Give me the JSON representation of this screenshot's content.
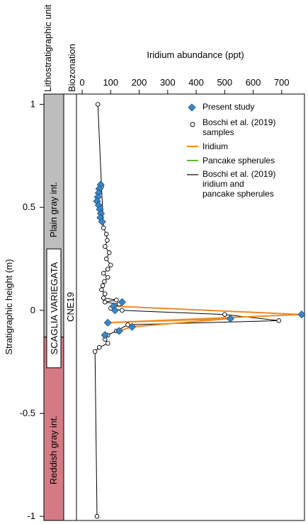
{
  "chart_data": {
    "type": "scatter",
    "title": "",
    "xlabel": "Iridium abundance (ppt)",
    "ylabel": "Stratigraphic height (m)",
    "xlim": [
      -20,
      780
    ],
    "ylim": [
      -1.02,
      1.05
    ],
    "x_ticks": [
      0,
      100,
      200,
      300,
      400,
      500,
      600,
      700
    ],
    "x_tick_labels": [
      "0",
      "100",
      "200",
      "300",
      "400",
      "500",
      "600",
      "700"
    ],
    "y_ticks": [
      1,
      0.5,
      0,
      -0.5,
      -1
    ],
    "y_tick_labels": [
      "1",
      "0.5",
      "0",
      "-0.5",
      "-1"
    ],
    "columns": {
      "litho_header": "Lithostratigraphic unit",
      "bio_header": "Biozonation",
      "formation": "SCAGLIA VARIEGATA",
      "upper_unit": "Plain gray int.",
      "lower_unit": "Reddish gray int.",
      "biozone": "CNE19",
      "boundary_height": -0.13,
      "upper_color": "#bdbdbd",
      "lower_color": "#d47a85"
    },
    "legend": {
      "placement": "top-right",
      "present_study": "Present study",
      "boschi_samples": "Boschi et al. (2019) samples",
      "iridium": "Iridium",
      "pancake": "Pancake spherules",
      "boschi_lines": "Boschi et al. (2019) iridium and pancake spherules"
    },
    "colors": {
      "present_study": "#3a87c8",
      "iridium_line": "#f08a24",
      "pancake_line": "#5cb531",
      "boschi_line": "#000000"
    },
    "series": [
      {
        "name": "Present study",
        "marker": "diamond",
        "points": [
          {
            "x": 65,
            "y": 0.61
          },
          {
            "x": 60,
            "y": 0.59
          },
          {
            "x": 58,
            "y": 0.57
          },
          {
            "x": 55,
            "y": 0.55
          },
          {
            "x": 52,
            "y": 0.53
          },
          {
            "x": 58,
            "y": 0.51
          },
          {
            "x": 62,
            "y": 0.49
          },
          {
            "x": 66,
            "y": 0.47
          },
          {
            "x": 64,
            "y": 0.45
          },
          {
            "x": 70,
            "y": 0.43
          },
          {
            "x": 140,
            "y": 0.04
          },
          {
            "x": 110,
            "y": 0.02
          },
          {
            "x": 115,
            "y": 0.0
          },
          {
            "x": 770,
            "y": -0.02
          },
          {
            "x": 520,
            "y": -0.04
          },
          {
            "x": 90,
            "y": -0.06
          },
          {
            "x": 175,
            "y": -0.08
          },
          {
            "x": 130,
            "y": -0.1
          },
          {
            "x": 80,
            "y": -0.12
          }
        ]
      },
      {
        "name": "Iridium",
        "marker": "line",
        "points": [
          {
            "x": 110,
            "y": 0.02
          },
          {
            "x": 770,
            "y": -0.02
          },
          {
            "x": 90,
            "y": -0.06
          },
          {
            "x": 520,
            "y": -0.04
          },
          {
            "x": 175,
            "y": -0.08
          },
          {
            "x": 130,
            "y": -0.1
          }
        ]
      },
      {
        "name": "Boschi et al. (2019) samples",
        "marker": "circle",
        "points": [
          {
            "x": 55,
            "y": 1.0
          },
          {
            "x": 68,
            "y": 0.6
          },
          {
            "x": 75,
            "y": 0.4
          },
          {
            "x": 85,
            "y": 0.37
          },
          {
            "x": 88,
            "y": 0.34
          },
          {
            "x": 80,
            "y": 0.31
          },
          {
            "x": 95,
            "y": 0.28
          },
          {
            "x": 85,
            "y": 0.25
          },
          {
            "x": 100,
            "y": 0.22
          },
          {
            "x": 90,
            "y": 0.2
          },
          {
            "x": 75,
            "y": 0.18
          },
          {
            "x": 90,
            "y": 0.16
          },
          {
            "x": 78,
            "y": 0.14
          },
          {
            "x": 72,
            "y": 0.12
          },
          {
            "x": 68,
            "y": 0.1
          },
          {
            "x": 80,
            "y": 0.08
          },
          {
            "x": 75,
            "y": 0.06
          },
          {
            "x": 120,
            "y": 0.05
          },
          {
            "x": 80,
            "y": 0.04
          },
          {
            "x": 130,
            "y": 0.03
          },
          {
            "x": 100,
            "y": 0.01
          },
          {
            "x": 140,
            "y": 0.0
          },
          {
            "x": 500,
            "y": -0.02
          },
          {
            "x": 690,
            "y": -0.05
          },
          {
            "x": 160,
            "y": -0.07
          },
          {
            "x": 120,
            "y": -0.1
          },
          {
            "x": 90,
            "y": -0.12
          },
          {
            "x": 80,
            "y": -0.14
          },
          {
            "x": 90,
            "y": -0.16
          },
          {
            "x": 60,
            "y": -0.18
          },
          {
            "x": 45,
            "y": -0.2
          },
          {
            "x": 52,
            "y": -1.0
          }
        ]
      }
    ]
  }
}
